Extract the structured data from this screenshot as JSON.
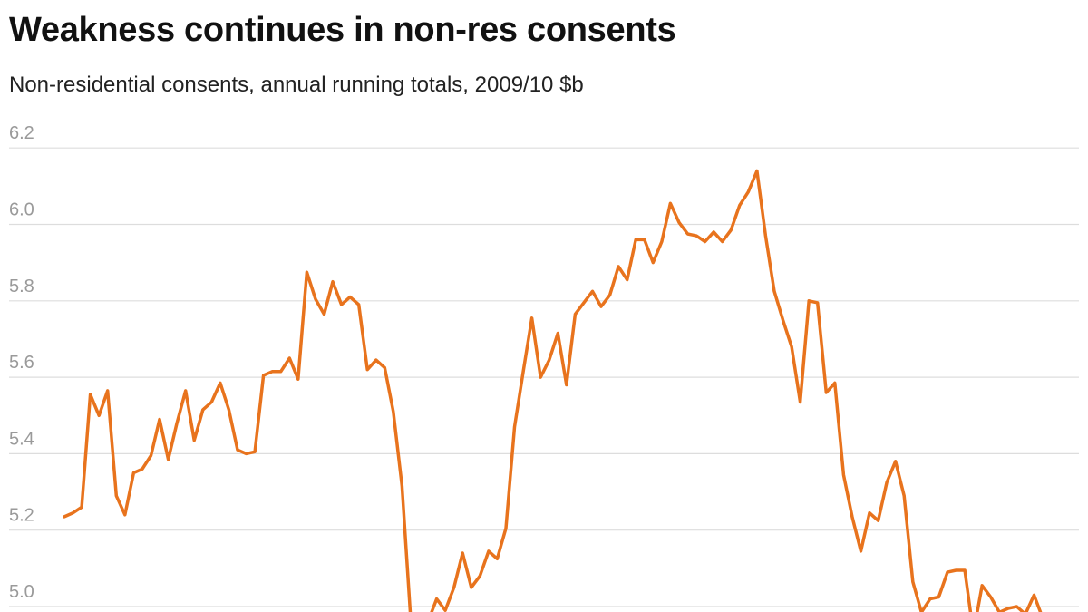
{
  "chart_data": {
    "type": "line",
    "title": "Weakness continues in non-res consents",
    "subtitle": "Non-residential consents, annual running totals, 2009/10 $b",
    "xlabel": "",
    "ylabel": "",
    "ylim": [
      4.98,
      6.2
    ],
    "yticks": [
      5.0,
      5.2,
      5.4,
      5.6,
      5.8,
      6.0,
      6.2
    ],
    "ytick_labels": [
      "5.0",
      "5.2",
      "5.4",
      "5.6",
      "5.8",
      "6.0",
      "6.2"
    ],
    "grid": true,
    "legend": "none",
    "line_color": "#e8731d",
    "grid_color": "#dddddd",
    "series": [
      {
        "values": [
          5.235,
          5.245,
          5.26,
          5.555,
          5.5,
          5.565,
          5.29,
          5.24,
          5.35,
          5.36,
          5.395,
          5.49,
          5.385,
          5.48,
          5.565,
          5.435,
          5.515,
          5.535,
          5.585,
          5.515,
          5.41,
          5.4,
          5.405,
          5.605,
          5.615,
          5.615,
          5.65,
          5.595,
          5.875,
          5.805,
          5.765,
          5.85,
          5.79,
          5.81,
          5.79,
          5.62,
          5.645,
          5.625,
          5.51,
          5.315,
          4.97,
          4.93,
          4.96,
          5.02,
          4.99,
          5.05,
          5.14,
          5.05,
          5.08,
          5.145,
          5.125,
          5.205,
          5.47,
          5.615,
          5.755,
          5.6,
          5.645,
          5.715,
          5.58,
          5.765,
          5.795,
          5.825,
          5.785,
          5.815,
          5.89,
          5.855,
          5.96,
          5.96,
          5.9,
          5.955,
          6.055,
          6.005,
          5.975,
          5.97,
          5.955,
          5.98,
          5.955,
          5.985,
          6.05,
          6.085,
          6.14,
          5.97,
          5.825,
          5.75,
          5.68,
          5.535,
          5.8,
          5.795,
          5.56,
          5.585,
          5.345,
          5.235,
          5.145,
          5.245,
          5.225,
          5.325,
          5.38,
          5.29,
          5.065,
          4.985,
          5.02,
          5.025,
          5.09,
          5.095,
          5.095,
          4.93,
          5.055,
          5.025,
          4.985,
          4.995,
          5.0,
          4.98,
          5.03,
          4.97
        ]
      }
    ]
  }
}
